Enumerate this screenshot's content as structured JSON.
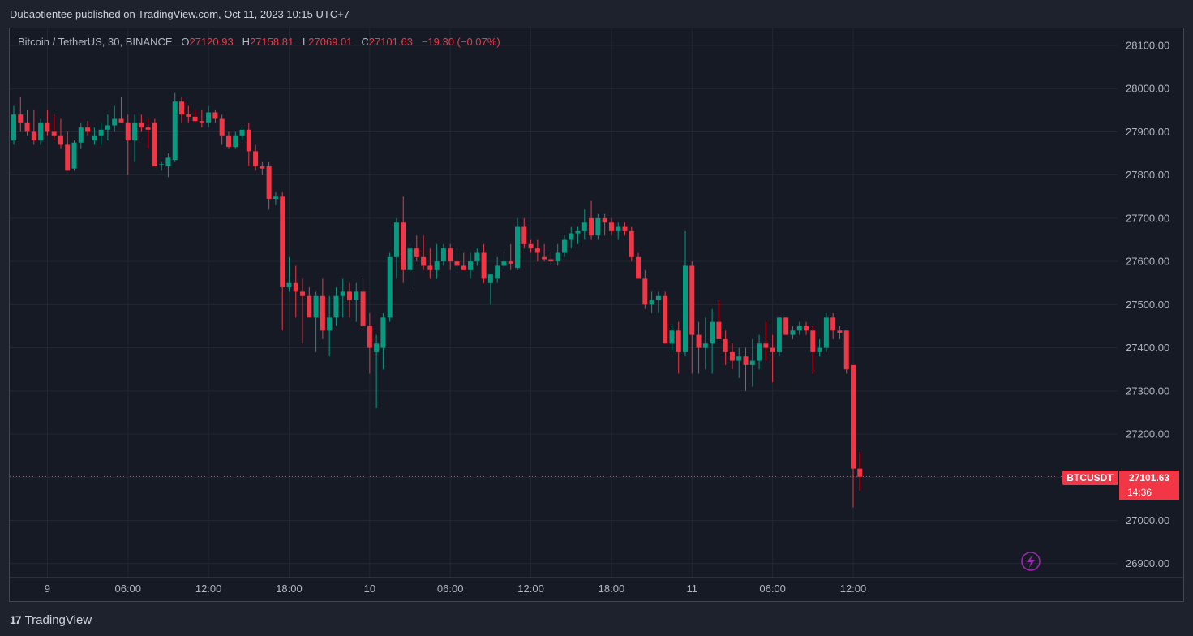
{
  "header": {
    "published_text": "Dubaotientee published on TradingView.com, Oct 11, 2023 10:15 UTC+7"
  },
  "legend": {
    "symbol": "Bitcoin / TetherUS, 30, BINANCE",
    "open_label": "O",
    "open": "27120.93",
    "high_label": "H",
    "high": "27158.81",
    "low_label": "L",
    "low": "27069.01",
    "close_label": "C",
    "close": "27101.63",
    "change": "−19.30 (−0.07%)"
  },
  "price_tag": {
    "symbol": "BTCUSDT",
    "price": "27101.63",
    "countdown": "14:36"
  },
  "footer": {
    "brand": "TradingView",
    "logo": "17"
  },
  "colors": {
    "up": "#089981",
    "down": "#f23645",
    "background": "#161a25",
    "grid": "#232733",
    "text": "#b2b5be",
    "lightning": "#9c27b0"
  },
  "icons": {
    "lightning": "lightning-icon"
  },
  "chart_data": {
    "type": "candlestick",
    "title": "Bitcoin / TetherUS, 30, BINANCE",
    "interval_minutes": 30,
    "y_ticks": [
      "28100.00",
      "28000.00",
      "27900.00",
      "27800.00",
      "27700.00",
      "27600.00",
      "27500.00",
      "27400.00",
      "27300.00",
      "27200.00",
      "27100.00",
      "27000.00",
      "26900.00"
    ],
    "y_range": [
      26880,
      28140
    ],
    "x_ticks": [
      {
        "label": "9",
        "time": "Oct 9 00:00"
      },
      {
        "label": "06:00",
        "time": "Oct 9 06:00"
      },
      {
        "label": "12:00",
        "time": "Oct 9 12:00"
      },
      {
        "label": "18:00",
        "time": "Oct 9 18:00"
      },
      {
        "label": "10",
        "time": "Oct 10 00:00"
      },
      {
        "label": "06:00",
        "time": "Oct 10 06:00"
      },
      {
        "label": "12:00",
        "time": "Oct 10 12:00"
      },
      {
        "label": "18:00",
        "time": "Oct 10 18:00"
      },
      {
        "label": "11",
        "time": "Oct 11 00:00"
      },
      {
        "label": "06:00",
        "time": "Oct 11 06:00"
      },
      {
        "label": "12:00",
        "time": "Oct 11 12:00"
      }
    ],
    "first_candle_time": "Oct 8 21:30",
    "last_price": 27101.63,
    "candles": [
      [
        27880,
        27960,
        27870,
        27940
      ],
      [
        27940,
        27980,
        27900,
        27920
      ],
      [
        27920,
        27950,
        27890,
        27900
      ],
      [
        27900,
        27950,
        27870,
        27880
      ],
      [
        27880,
        27930,
        27870,
        27920
      ],
      [
        27920,
        27950,
        27890,
        27900
      ],
      [
        27900,
        27940,
        27880,
        27890
      ],
      [
        27890,
        27930,
        27860,
        27870
      ],
      [
        27870,
        27900,
        27810,
        27810
      ],
      [
        27815,
        27880,
        27810,
        27875
      ],
      [
        27875,
        27920,
        27860,
        27910
      ],
      [
        27910,
        27925,
        27890,
        27900
      ],
      [
        27880,
        27910,
        27870,
        27890
      ],
      [
        27890,
        27920,
        27870,
        27905
      ],
      [
        27905,
        27940,
        27880,
        27915
      ],
      [
        27915,
        27960,
        27900,
        27930
      ],
      [
        27930,
        27980,
        27920,
        27920
      ],
      [
        27920,
        27940,
        27800,
        27880
      ],
      [
        27880,
        27940,
        27830,
        27920
      ],
      [
        27920,
        27940,
        27900,
        27910
      ],
      [
        27910,
        27930,
        27860,
        27905
      ],
      [
        27920,
        27930,
        27820,
        27820
      ],
      [
        27822,
        27830,
        27810,
        27825
      ],
      [
        27820,
        27850,
        27795,
        27840
      ],
      [
        27835,
        27990,
        27830,
        27970
      ],
      [
        27970,
        27980,
        27920,
        27940
      ],
      [
        27940,
        27960,
        27920,
        27935
      ],
      [
        27935,
        27950,
        27920,
        27925
      ],
      [
        27925,
        27950,
        27910,
        27920
      ],
      [
        27920,
        27960,
        27910,
        27945
      ],
      [
        27945,
        27950,
        27920,
        27930
      ],
      [
        27930,
        27940,
        27870,
        27890
      ],
      [
        27890,
        27900,
        27860,
        27865
      ],
      [
        27865,
        27900,
        27860,
        27890
      ],
      [
        27890,
        27910,
        27880,
        27905
      ],
      [
        27905,
        27920,
        27820,
        27855
      ],
      [
        27855,
        27870,
        27810,
        27820
      ],
      [
        27820,
        27830,
        27800,
        27815
      ],
      [
        27820,
        27830,
        27720,
        27745
      ],
      [
        27745,
        27760,
        27730,
        27750
      ],
      [
        27750,
        27760,
        27440,
        27540
      ],
      [
        27540,
        27610,
        27530,
        27550
      ],
      [
        27550,
        27590,
        27470,
        27530
      ],
      [
        27530,
        27560,
        27410,
        27520
      ],
      [
        27520,
        27540,
        27480,
        27470
      ],
      [
        27470,
        27530,
        27390,
        27520
      ],
      [
        27520,
        27560,
        27420,
        27440
      ],
      [
        27440,
        27520,
        27380,
        27470
      ],
      [
        27470,
        27540,
        27450,
        27520
      ],
      [
        27520,
        27560,
        27470,
        27530
      ],
      [
        27530,
        27550,
        27470,
        27510
      ],
      [
        27510,
        27550,
        27460,
        27530
      ],
      [
        27530,
        27560,
        27440,
        27450
      ],
      [
        27450,
        27480,
        27340,
        27400
      ],
      [
        27390,
        27430,
        27260,
        27410
      ],
      [
        27400,
        27480,
        27350,
        27470
      ],
      [
        27470,
        27620,
        27460,
        27610
      ],
      [
        27610,
        27700,
        27560,
        27690
      ],
      [
        27690,
        27750,
        27550,
        27580
      ],
      [
        27580,
        27640,
        27530,
        27630
      ],
      [
        27630,
        27660,
        27600,
        27610
      ],
      [
        27610,
        27660,
        27580,
        27590
      ],
      [
        27590,
        27630,
        27560,
        27580
      ],
      [
        27580,
        27640,
        27560,
        27600
      ],
      [
        27600,
        27640,
        27590,
        27630
      ],
      [
        27630,
        27640,
        27580,
        27600
      ],
      [
        27600,
        27630,
        27580,
        27590
      ],
      [
        27590,
        27620,
        27580,
        27580
      ],
      [
        27580,
        27620,
        27560,
        27600
      ],
      [
        27600,
        27630,
        27590,
        27620
      ],
      [
        27620,
        27640,
        27550,
        27560
      ],
      [
        27550,
        27570,
        27500,
        27570
      ],
      [
        27560,
        27610,
        27550,
        27590
      ],
      [
        27590,
        27620,
        27580,
        27600
      ],
      [
        27600,
        27640,
        27580,
        27595
      ],
      [
        27585,
        27700,
        27580,
        27680
      ],
      [
        27680,
        27700,
        27630,
        27640
      ],
      [
        27640,
        27650,
        27620,
        27630
      ],
      [
        27630,
        27650,
        27600,
        27620
      ],
      [
        27610,
        27640,
        27600,
        27605
      ],
      [
        27605,
        27620,
        27590,
        27600
      ],
      [
        27600,
        27640,
        27590,
        27620
      ],
      [
        27620,
        27660,
        27610,
        27650
      ],
      [
        27650,
        27680,
        27630,
        27665
      ],
      [
        27665,
        27680,
        27640,
        27670
      ],
      [
        27670,
        27720,
        27650,
        27690
      ],
      [
        27700,
        27740,
        27650,
        27660
      ],
      [
        27660,
        27710,
        27650,
        27700
      ],
      [
        27700,
        27710,
        27660,
        27690
      ],
      [
        27690,
        27700,
        27660,
        27670
      ],
      [
        27670,
        27690,
        27650,
        27680
      ],
      [
        27680,
        27690,
        27660,
        27670
      ],
      [
        27670,
        27680,
        27600,
        27610
      ],
      [
        27610,
        27620,
        27560,
        27560
      ],
      [
        27560,
        27580,
        27490,
        27500
      ],
      [
        27500,
        27530,
        27480,
        27510
      ],
      [
        27510,
        27530,
        27480,
        27520
      ],
      [
        27520,
        27530,
        27410,
        27410
      ],
      [
        27410,
        27450,
        27390,
        27440
      ],
      [
        27440,
        27460,
        27340,
        27390
      ],
      [
        27390,
        27670,
        27380,
        27590
      ],
      [
        27590,
        27600,
        27340,
        27430
      ],
      [
        27430,
        27460,
        27340,
        27400
      ],
      [
        27400,
        27470,
        27350,
        27410
      ],
      [
        27410,
        27490,
        27340,
        27460
      ],
      [
        27460,
        27510,
        27430,
        27420
      ],
      [
        27420,
        27440,
        27360,
        27390
      ],
      [
        27390,
        27410,
        27350,
        27370
      ],
      [
        27370,
        27400,
        27330,
        27380
      ],
      [
        27380,
        27400,
        27300,
        27360
      ],
      [
        27360,
        27420,
        27310,
        27370
      ],
      [
        27370,
        27430,
        27350,
        27410
      ],
      [
        27410,
        27460,
        27370,
        27400
      ],
      [
        27400,
        27430,
        27320,
        27390
      ],
      [
        27390,
        27470,
        27380,
        27470
      ],
      [
        27470,
        27470,
        27430,
        27430
      ],
      [
        27430,
        27450,
        27420,
        27440
      ],
      [
        27440,
        27460,
        27430,
        27450
      ],
      [
        27450,
        27460,
        27430,
        27440
      ],
      [
        27440,
        27450,
        27340,
        27390
      ],
      [
        27390,
        27420,
        27380,
        27400
      ],
      [
        27400,
        27480,
        27390,
        27470
      ],
      [
        27470,
        27480,
        27420,
        27440
      ],
      [
        27440,
        27450,
        27420,
        27435
      ],
      [
        27440,
        27440,
        27340,
        27350
      ],
      [
        27360,
        27360,
        27030,
        27120
      ],
      [
        27120,
        27158,
        27069,
        27101
      ]
    ]
  }
}
